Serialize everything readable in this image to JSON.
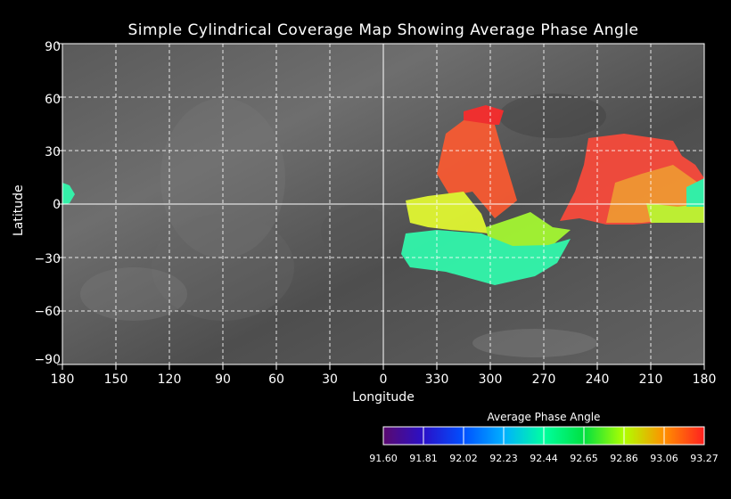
{
  "title": "Simple Cylindrical Coverage Map Showing Average Phase Angle",
  "axes": {
    "xlabel": "Longitude",
    "ylabel": "Latitude",
    "lon_ticks": [
      "180",
      "150",
      "120",
      "90",
      "60",
      "30",
      "0",
      "330",
      "300",
      "270",
      "240",
      "210",
      "180"
    ],
    "lat_ticks": [
      "90",
      "60",
      "30",
      "0",
      "−30",
      "−60",
      "−90"
    ]
  },
  "grid": true,
  "colorbar": {
    "title": "Average Phase Angle",
    "ticks": [
      "91.60",
      "91.81",
      "92.02",
      "92.23",
      "92.44",
      "92.65",
      "92.86",
      "93.06",
      "93.27"
    ],
    "colors": [
      "#5a0a6e",
      "#2a10c8",
      "#0050ff",
      "#00b0ff",
      "#00ffa0",
      "#00e040",
      "#b0ff00",
      "#ff9000",
      "#ff2020"
    ]
  }
}
